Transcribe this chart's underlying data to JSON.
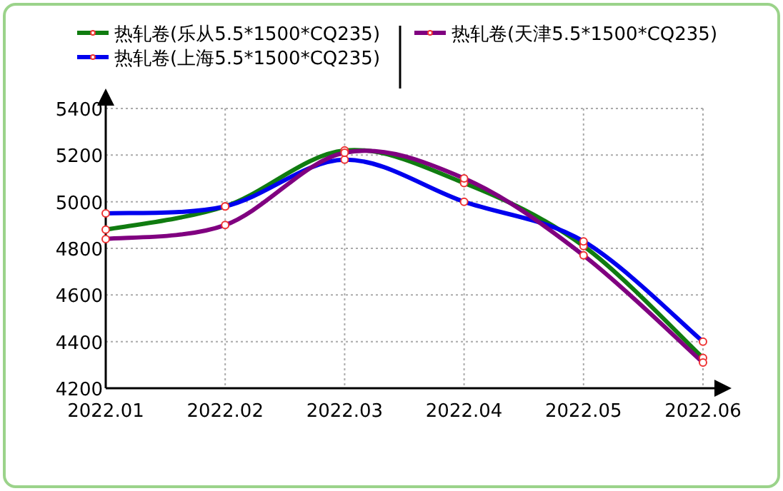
{
  "chart_data": {
    "type": "line",
    "categories": [
      "2022.01",
      "2022.02",
      "2022.03",
      "2022.04",
      "2022.05",
      "2022.06"
    ],
    "series": [
      {
        "name": "热轧卷(乐从5.5*1500*CQ235)",
        "color": "#107c10",
        "values": [
          4880,
          4980,
          5220,
          5080,
          4810,
          4330
        ]
      },
      {
        "name": "热轧卷(上海5.5*1500*CQ235)",
        "color": "#0000ee",
        "values": [
          4950,
          4980,
          5180,
          5000,
          4830,
          4400
        ]
      },
      {
        "name": "热轧卷(天津5.5*1500*CQ235)",
        "color": "#800080",
        "values": [
          4840,
          4900,
          5210,
          5100,
          4770,
          4310
        ]
      }
    ],
    "ylim": [
      4200,
      5400
    ],
    "yticks": [
      4200,
      4400,
      4600,
      4800,
      5000,
      5200,
      5400
    ],
    "grid": true,
    "legend": "top",
    "marker": "circle",
    "line_style": "solid"
  }
}
